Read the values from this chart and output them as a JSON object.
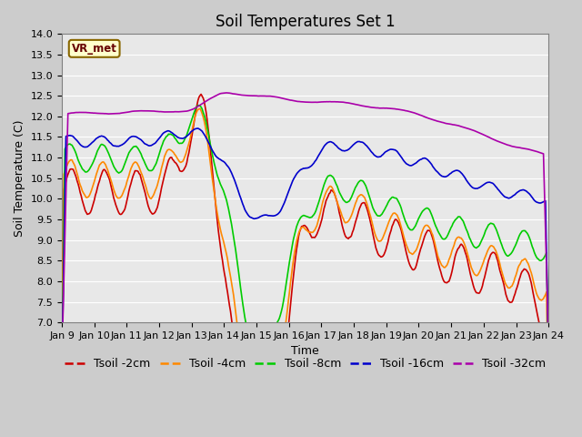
{
  "title": "Soil Temperatures Set 1",
  "xlabel": "Time",
  "ylabel": "Soil Temperature (C)",
  "ylim": [
    7.0,
    14.0
  ],
  "yticks": [
    7.0,
    7.5,
    8.0,
    8.5,
    9.0,
    9.5,
    10.0,
    10.5,
    11.0,
    11.5,
    12.0,
    12.5,
    13.0,
    13.5,
    14.0
  ],
  "xtick_labels": [
    "Jan 9",
    "Jan 10",
    "Jan 11",
    "Jan 12",
    "Jan 13",
    "Jan 14",
    "Jan 15",
    "Jan 16",
    "Jan 17",
    "Jan 18",
    "Jan 19",
    "Jan 20",
    "Jan 21",
    "Jan 22",
    "Jan 23",
    "Jan 24"
  ],
  "station_label": "VR_met",
  "fig_bg": "#cccccc",
  "plot_bg": "#e8e8e8",
  "grid_color": "#ffffff",
  "series": [
    {
      "label": "Tsoil -2cm",
      "color": "#cc0000",
      "lw": 1.2
    },
    {
      "label": "Tsoil -4cm",
      "color": "#ff8800",
      "lw": 1.2
    },
    {
      "label": "Tsoil -8cm",
      "color": "#00cc00",
      "lw": 1.2
    },
    {
      "label": "Tsoil -16cm",
      "color": "#0000cc",
      "lw": 1.2
    },
    {
      "label": "Tsoil -32cm",
      "color": "#aa00aa",
      "lw": 1.2
    }
  ],
  "title_fontsize": 12,
  "axis_label_fontsize": 9,
  "tick_fontsize": 8,
  "legend_fontsize": 9
}
